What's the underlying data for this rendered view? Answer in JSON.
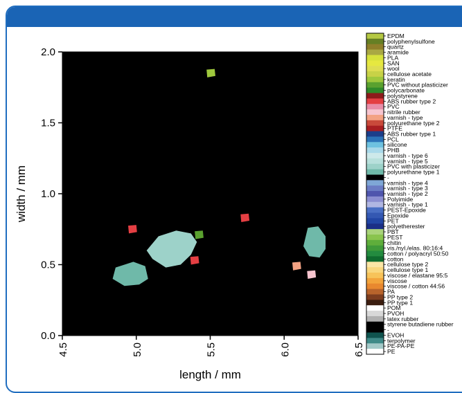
{
  "colors": {
    "frame": "#1f6dbf",
    "header": "#1a64b5",
    "plot_background": "#000000"
  },
  "chart_data": {
    "type": "heatmap",
    "title": "",
    "xlabel": "length / mm",
    "ylabel": "width / mm",
    "xlim": [
      4.5,
      6.5
    ],
    "ylim": [
      0.0,
      2.0
    ],
    "x_ticks": [
      "4.5",
      "5.0",
      "5.5",
      "6.0",
      "6.5"
    ],
    "y_ticks": [
      "0.0",
      "0.5",
      "1.0",
      "1.5",
      "2.0"
    ],
    "grid": false,
    "legend_placement": "right",
    "legend": [
      {
        "label": "EPDM",
        "color": "#b5c843"
      },
      {
        "label": "polyphenylsulfone",
        "color": "#667f24"
      },
      {
        "label": "quartz",
        "color": "#8f7f2a"
      },
      {
        "label": "aramide",
        "color": "#a9a843"
      },
      {
        "label": "PLA",
        "color": "#d6e23c"
      },
      {
        "label": "SAN",
        "color": "#e6e840"
      },
      {
        "label": "wool",
        "color": "#dede52"
      },
      {
        "label": "cellulose acetate",
        "color": "#c8d247"
      },
      {
        "label": "keratin",
        "color": "#9fc83d"
      },
      {
        "label": "PVC without plasticizer",
        "color": "#5aa12f"
      },
      {
        "label": "polycarbonate",
        "color": "#2f8a2a"
      },
      {
        "label": "polystyrene",
        "color": "#8d1b1b"
      },
      {
        "label": "ABS rubber type 2",
        "color": "#e43f43"
      },
      {
        "label": "PVC",
        "color": "#e98eaa"
      },
      {
        "label": "nitrile rubber",
        "color": "#f7c5cf"
      },
      {
        "label": "varnish - type",
        "color": "#f3a283"
      },
      {
        "label": "polyurethane type 2",
        "color": "#c94a3b"
      },
      {
        "label": "PTFE",
        "color": "#a81e22"
      },
      {
        "label": "ABS rubber type 1",
        "color": "#1c3e8a"
      },
      {
        "label": "PCL",
        "color": "#2c73b8"
      },
      {
        "label": "silicone",
        "color": "#6ec2e0"
      },
      {
        "label": "PHB",
        "color": "#a9d9ea"
      },
      {
        "label": "varnish - type 6",
        "color": "#cde9ea"
      },
      {
        "label": "varnish - type 5",
        "color": "#b8e0dc"
      },
      {
        "label": "PVC with plasticizer",
        "color": "#9dd2c9"
      },
      {
        "label": "polyurethane type 1",
        "color": "#6fb9a9"
      },
      {
        "label": "-",
        "color": "#000000"
      },
      {
        "label": "varnish - type 4",
        "color": "#7fa7d6"
      },
      {
        "label": "varnish - type 3",
        "color": "#6b7cc4"
      },
      {
        "label": "varnish - type 2",
        "color": "#4f55ad"
      },
      {
        "label": "Polyimide",
        "color": "#8c8fd1"
      },
      {
        "label": "varnish - type 1",
        "color": "#b1b7e2"
      },
      {
        "label": "PEST-Epoxide",
        "color": "#4a6fc4"
      },
      {
        "label": "Epoxide",
        "color": "#3458b2"
      },
      {
        "label": "PET",
        "color": "#2246a4"
      },
      {
        "label": "polyetherester",
        "color": "#1b2f86"
      },
      {
        "label": "PBT",
        "color": "#a9d37a"
      },
      {
        "label": "PEST",
        "color": "#8ac44e"
      },
      {
        "label": "chitin",
        "color": "#5fae3b"
      },
      {
        "label": "vis./nyl./elas. 80:16:4",
        "color": "#3f9a39"
      },
      {
        "label": "cotton / polyacryl 50:50",
        "color": "#238b3f"
      },
      {
        "label": "cotton",
        "color": "#0f6b2e"
      },
      {
        "label": "cellulose type 2",
        "color": "#fbe6a6"
      },
      {
        "label": "cellulose type 1",
        "color": "#f9d77e"
      },
      {
        "label": "viscose / elastane 95:5",
        "color": "#f7c35a"
      },
      {
        "label": "viscose",
        "color": "#f2a43c"
      },
      {
        "label": "viscose / cotton 44:56",
        "color": "#e8882f"
      },
      {
        "label": "PA",
        "color": "#b8642c"
      },
      {
        "label": "PP type 2",
        "color": "#7d3d1f"
      },
      {
        "label": "PP type 1",
        "color": "#3b1d0f"
      },
      {
        "label": "POM",
        "color": "#ffffff"
      },
      {
        "label": "PVOH",
        "color": "#d8d8d8"
      },
      {
        "label": "latex rubber",
        "color": "#b0b0b0"
      },
      {
        "label": "styrene butadiene rubber",
        "color": "#000000"
      },
      {
        "label": "-",
        "color": "#000000"
      },
      {
        "label": "EVOH",
        "color": "#10534e"
      },
      {
        "label": "terpolymer",
        "color": "#3f8a88"
      },
      {
        "label": "PE-PA-PE",
        "color": "#a3c9c8"
      },
      {
        "label": "PE",
        "color": "#ffffff"
      }
    ],
    "regions": [
      {
        "class": "PVC with plasticizer",
        "x": 5.27,
        "y": 0.62
      },
      {
        "class": "polyurethane type 1",
        "x": 5.0,
        "y": 0.44
      },
      {
        "class": "polyurethane type 1",
        "x": 6.21,
        "y": 0.65
      },
      {
        "class": "keratin",
        "x": 5.5,
        "y": 1.85
      },
      {
        "class": "ABS rubber type 2",
        "x": 5.73,
        "y": 0.83
      },
      {
        "class": "ABS rubber type 2",
        "x": 4.97,
        "y": 0.75
      },
      {
        "class": "ABS rubber type 2",
        "x": 5.39,
        "y": 0.53
      },
      {
        "class": "PVC without plasticizer",
        "x": 5.42,
        "y": 0.71
      },
      {
        "class": "nitrile rubber",
        "x": 6.18,
        "y": 0.43
      },
      {
        "class": "varnish - type",
        "x": 6.08,
        "y": 0.49
      }
    ]
  }
}
